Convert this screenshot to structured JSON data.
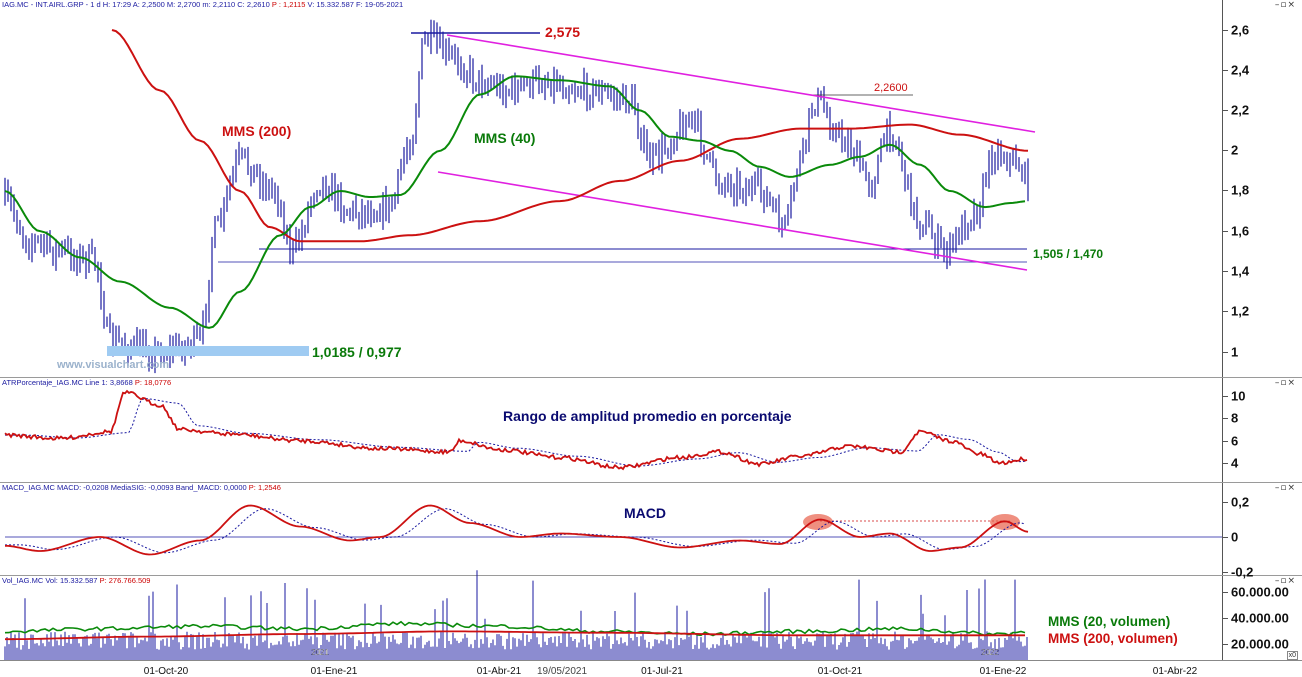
{
  "price_pane": {
    "header": "IAG.MC - INT.AIRL.GRP - 1 d H: 17:29 A: 2,2500 M: 2,2700 m: 2,2110 C: 2,2610",
    "header_red": "P : 1,2115",
    "header_tail": "V: 15.332.587 F: 19-05-2021",
    "window_buttons": "–▫×",
    "y_ticks": [
      "2,6",
      "2,4",
      "2,2",
      "2",
      "1,8",
      "1,6",
      "1,4",
      "1,2",
      "1"
    ],
    "labels": {
      "high": "2,575",
      "mid_high": "2,2600",
      "mms200": "MMS (200)",
      "mms40": "MMS (40)",
      "support": "1,505 / 1,470",
      "low": "1,0185 / 0,977",
      "watermark": "www.visualchart.com"
    }
  },
  "atr_pane": {
    "header": "ATRPorcentaje_IAG.MC Line 1: 3,8668",
    "header_red": "P: 18,0776",
    "title": "Rango de amplitud promedio en porcentaje",
    "window_buttons": "–▫×",
    "y_ticks": [
      "10",
      "8",
      "6",
      "4"
    ]
  },
  "macd_pane": {
    "header": "MACD_IAG.MC MACD: -0,0208 MediaSIG: -0,0093 Band_MACD: 0,0000",
    "header_red": "P: 1,2546",
    "title": "MACD",
    "window_buttons": "–▫×",
    "y_ticks": [
      "0,2",
      "0",
      "-0,2"
    ]
  },
  "vol_pane": {
    "header": "Vol_IAG.MC Vol: 15.332.587",
    "header_red": "P: 276.766.509",
    "window_buttons": "–▫×",
    "y_ticks": [
      "60.000.00",
      "40.000.00",
      "20.000.00"
    ],
    "labels": {
      "mms20": "MMS (20, volumen)",
      "mms200": "MMS (200, volumen)"
    },
    "corner_label": "x0"
  },
  "x_axis": {
    "labels": [
      "01-Oct-20",
      "01-Ene-21",
      "01-Abr-21",
      "19/05/2021",
      "01-Jul-21",
      "01-Oct-21",
      "01-Ene-22",
      "01-Abr-22"
    ],
    "year_marks": [
      "2021",
      "2022"
    ]
  },
  "colors": {
    "price_bars": "#1a1aa0",
    "mms40": "#0a8a0a",
    "mms200": "#cc1111",
    "channel": "#e020e0",
    "hlines": "#1a1aa0",
    "low_zone": "#9fcbf2",
    "atr_line": "#cc1111",
    "signal": "#1a1aa0",
    "text_red": "#cc1111",
    "text_green": "#0a7a0a",
    "text_blue": "#0a0a70"
  },
  "chart_data": [
    {
      "type": "line",
      "title": "",
      "x": [
        "01-Oct-20",
        "01-Ene-21",
        "01-Abr-21",
        "01-Jul-21",
        "01-Oct-21",
        "01-Ene-22"
      ],
      "ylim": [
        0.9,
        2.65
      ],
      "series": [
        {
          "name": "price",
          "values": [
            1.05,
            1.85,
            2.45,
            2.05,
            2.2,
            1.9
          ]
        },
        {
          "name": "MMS (40)",
          "values": [
            1.1,
            1.75,
            2.35,
            2.0,
            1.88,
            1.75
          ]
        },
        {
          "name": "MMS (200)",
          "values": [
            2.6,
            1.55,
            1.7,
            1.92,
            2.1,
            2.0
          ]
        }
      ],
      "annotations": [
        "2,575",
        "2,2600",
        "1,505 / 1,470",
        "1,0185 / 0,977"
      ]
    },
    {
      "type": "line",
      "title": "Rango de amplitud promedio en porcentaje",
      "ylim": [
        3,
        10.5
      ],
      "series": [
        {
          "name": "ATRPorcentaje",
          "values": [
            6.5,
            10.2,
            6.8,
            5.5,
            4.8,
            3.5,
            5.0,
            4.5,
            6.5,
            3.9
          ]
        }
      ]
    },
    {
      "type": "line",
      "title": "MACD",
      "ylim": [
        -0.25,
        0.2
      ],
      "series": [
        {
          "name": "MACD",
          "values": [
            -0.05,
            0.0,
            0.18,
            0.0,
            0.18,
            0.02,
            -0.04,
            0.1,
            -0.08,
            0.1,
            -0.02
          ]
        },
        {
          "name": "MediaSIG",
          "values": [
            -0.06,
            -0.01,
            0.16,
            0.01,
            0.16,
            0.03,
            -0.03,
            0.09,
            -0.06,
            0.09,
            -0.01
          ]
        }
      ]
    },
    {
      "type": "bar",
      "title": "",
      "ylim": [
        0,
        65000000
      ],
      "series": [
        {
          "name": "MMS (20, volumen)",
          "values": [
            22000000,
            28000000,
            25000000,
            20000000,
            22000000,
            18000000
          ]
        },
        {
          "name": "MMS (200, volumen)",
          "values": [
            18000000,
            22000000,
            23000000,
            20000000,
            19000000,
            18000000
          ]
        }
      ]
    }
  ]
}
